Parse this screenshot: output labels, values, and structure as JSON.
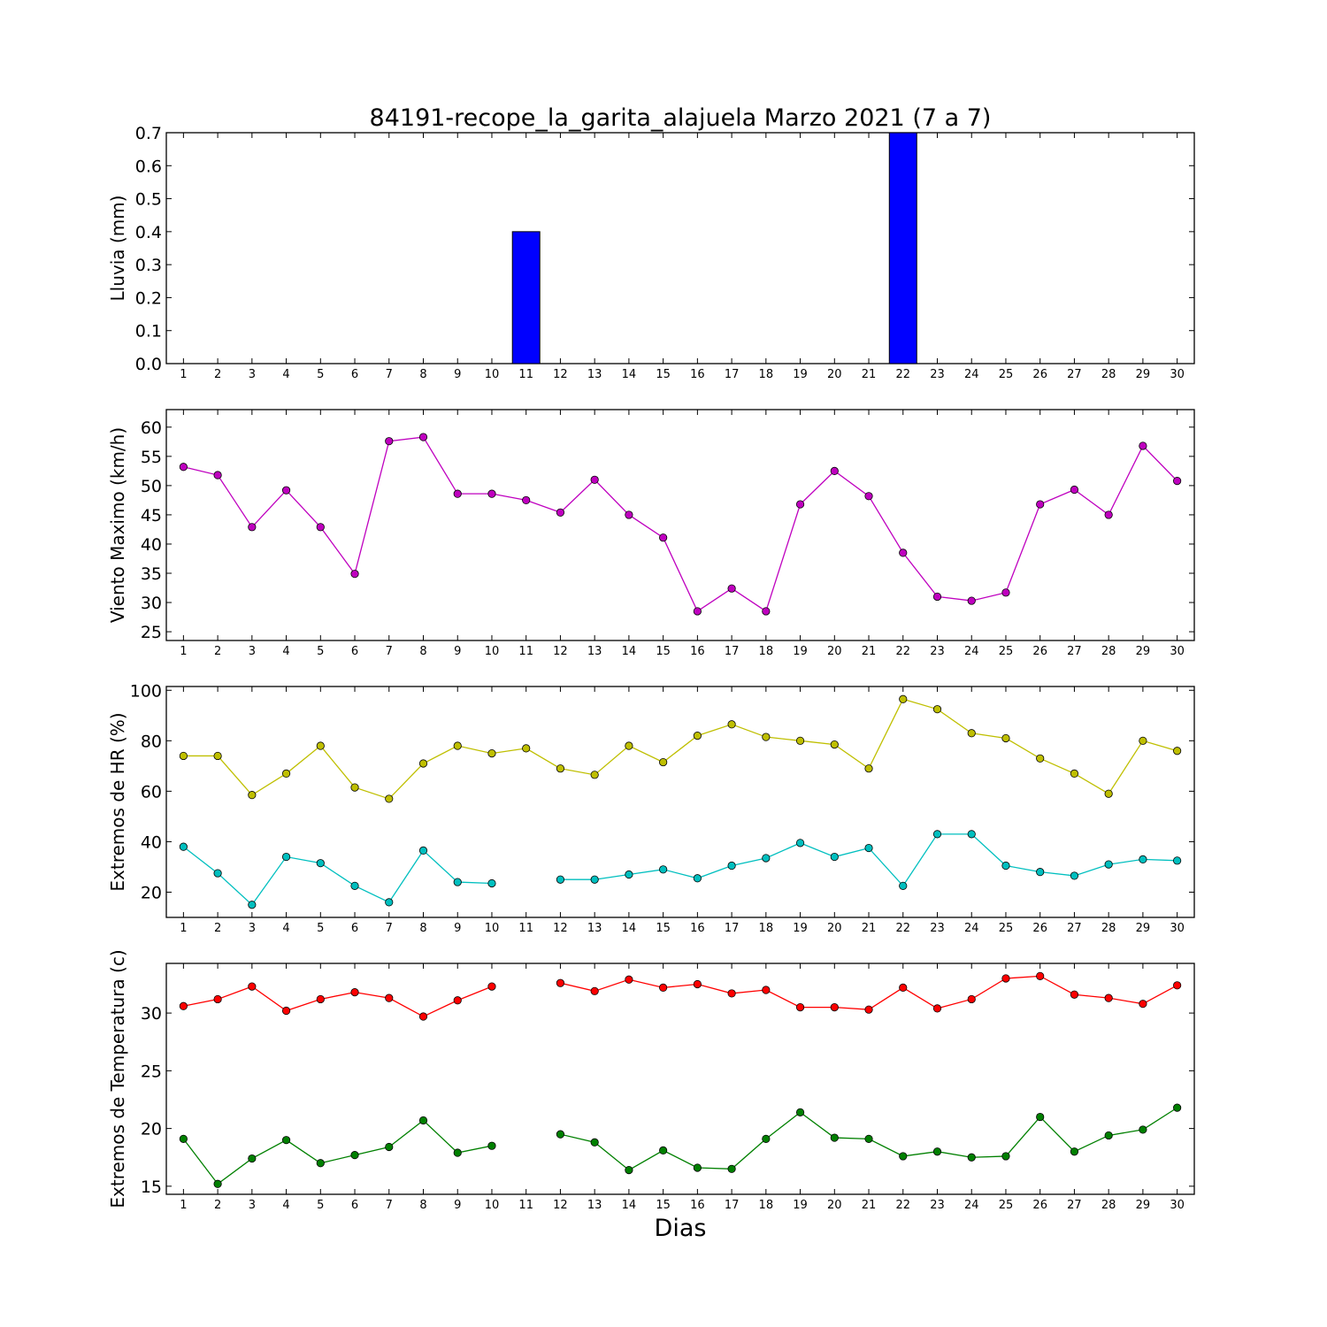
{
  "chart_data": [
    {
      "type": "bar",
      "title": "84191-recope_la_garita_alajuela Marzo 2021  (7 a 7)",
      "ylabel": "Lluvia (mm)",
      "xlabel": "",
      "categories": [
        "1",
        "2",
        "3",
        "4",
        "5",
        "6",
        "7",
        "8",
        "9",
        "10",
        "11",
        "12",
        "13",
        "14",
        "15",
        "16",
        "17",
        "18",
        "19",
        "20",
        "21",
        "22",
        "23",
        "24",
        "25",
        "26",
        "27",
        "28",
        "29",
        "30"
      ],
      "values": [
        0,
        0,
        0,
        0,
        0,
        0,
        0,
        0,
        0,
        0,
        0.4,
        0,
        0,
        0,
        0,
        0,
        0,
        0,
        0,
        0,
        0,
        0.7,
        0,
        0,
        0,
        0,
        0,
        0,
        0,
        0
      ],
      "ylim": [
        0,
        0.7
      ],
      "yticks": [
        0.0,
        0.1,
        0.2,
        0.3,
        0.4,
        0.5,
        0.6,
        0.7
      ],
      "ytick_labels": [
        "0.0",
        "0.1",
        "0.2",
        "0.3",
        "0.4",
        "0.5",
        "0.6",
        "0.7"
      ],
      "color": "#0000ff"
    },
    {
      "type": "line",
      "title": "",
      "ylabel": "Viento Maximo (km/h)",
      "xlabel": "",
      "categories": [
        "1",
        "2",
        "3",
        "4",
        "5",
        "6",
        "7",
        "8",
        "9",
        "10",
        "11",
        "12",
        "13",
        "14",
        "15",
        "16",
        "17",
        "18",
        "19",
        "20",
        "21",
        "22",
        "23",
        "24",
        "25",
        "26",
        "27",
        "28",
        "29",
        "30"
      ],
      "series": [
        {
          "color": "#bf00bf",
          "values": [
            53.2,
            51.8,
            42.9,
            49.2,
            42.9,
            34.9,
            57.6,
            58.3,
            48.6,
            48.6,
            47.5,
            45.4,
            51.0,
            45.0,
            41.1,
            28.5,
            32.4,
            28.5,
            46.8,
            52.5,
            48.2,
            38.5,
            31.0,
            30.3,
            31.7,
            46.8,
            49.3,
            45.0,
            56.8,
            50.8
          ]
        }
      ],
      "ylim": [
        23.5,
        63
      ],
      "yticks": [
        25,
        30,
        35,
        40,
        45,
        50,
        55,
        60
      ],
      "ytick_labels": [
        "25",
        "30",
        "35",
        "40",
        "45",
        "50",
        "55",
        "60"
      ]
    },
    {
      "type": "line",
      "title": "",
      "ylabel": "Extremos de HR (%)",
      "xlabel": "",
      "categories": [
        "1",
        "2",
        "3",
        "4",
        "5",
        "6",
        "7",
        "8",
        "9",
        "10",
        "11",
        "12",
        "13",
        "14",
        "15",
        "16",
        "17",
        "18",
        "19",
        "20",
        "21",
        "22",
        "23",
        "24",
        "25",
        "26",
        "27",
        "28",
        "29",
        "30"
      ],
      "series": [
        {
          "color": "#bfbf00",
          "values": [
            74,
            74,
            58.5,
            67,
            78,
            61.5,
            57,
            71,
            78,
            75,
            77,
            69,
            66.5,
            78,
            71.5,
            82,
            86.5,
            81.5,
            80,
            78.5,
            69,
            96.5,
            92.5,
            83,
            81,
            73,
            67,
            59,
            80,
            76
          ]
        },
        {
          "color": "#00bfbf",
          "values": [
            38,
            27.5,
            15,
            34,
            31.5,
            22.5,
            16,
            36.5,
            24,
            23.5,
            null,
            25,
            25,
            27,
            29,
            25.5,
            30.5,
            33.5,
            39.5,
            34,
            37.5,
            22.5,
            43,
            43,
            30.5,
            28,
            26.5,
            31,
            33,
            32.5
          ]
        }
      ],
      "ylim": [
        10,
        101.5
      ],
      "yticks": [
        20,
        40,
        60,
        80,
        100
      ],
      "ytick_labels": [
        "20",
        "40",
        "60",
        "80",
        "100"
      ]
    },
    {
      "type": "line",
      "title": "",
      "ylabel": "Extremos de Temperatura (c)",
      "xlabel": "Dias",
      "categories": [
        "1",
        "2",
        "3",
        "4",
        "5",
        "6",
        "7",
        "8",
        "9",
        "10",
        "11",
        "12",
        "13",
        "14",
        "15",
        "16",
        "17",
        "18",
        "19",
        "20",
        "21",
        "22",
        "23",
        "24",
        "25",
        "26",
        "27",
        "28",
        "29",
        "30"
      ],
      "series": [
        {
          "color": "#ff0000",
          "values": [
            30.6,
            31.2,
            32.3,
            30.2,
            31.2,
            31.8,
            31.3,
            29.7,
            31.1,
            32.3,
            null,
            32.6,
            31.9,
            32.9,
            32.2,
            32.5,
            31.7,
            32.0,
            30.5,
            30.5,
            30.3,
            32.2,
            30.4,
            31.2,
            33.0,
            33.2,
            31.6,
            31.3,
            30.8,
            32.4
          ]
        },
        {
          "color": "#008000",
          "values": [
            19.1,
            15.2,
            17.4,
            19.0,
            17.0,
            17.7,
            18.4,
            20.7,
            17.9,
            18.5,
            null,
            19.5,
            18.8,
            16.4,
            18.1,
            16.6,
            16.5,
            19.1,
            21.4,
            19.2,
            19.1,
            17.6,
            18.0,
            17.5,
            17.6,
            21.0,
            18.0,
            19.4,
            19.9,
            21.8
          ]
        }
      ],
      "ylim": [
        14.3,
        34.3
      ],
      "yticks": [
        15,
        20,
        25,
        30
      ],
      "ytick_labels": [
        "15",
        "20",
        "25",
        "30"
      ]
    }
  ]
}
